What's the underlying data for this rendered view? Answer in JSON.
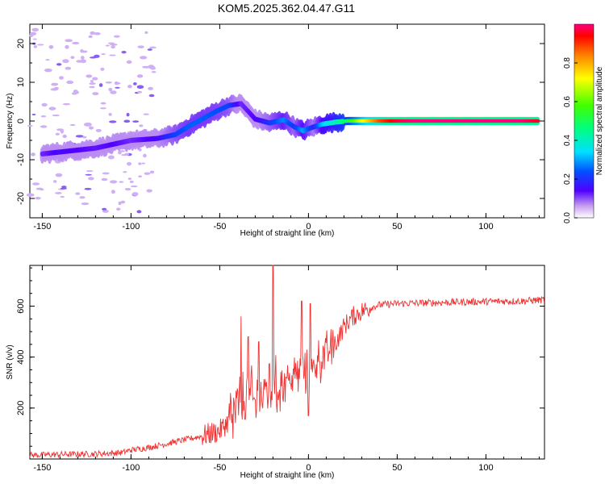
{
  "title": "KOM5.2025.362.04.47.G11",
  "colors": {
    "snr_line": "#f03232",
    "axis": "#000000"
  },
  "chart_data": [
    {
      "type": "heatmap",
      "xlabel": "Height of straight line (km)",
      "ylabel": "Frequency (Hz)",
      "xlim": [
        -157,
        133
      ],
      "ylim": [
        -25,
        25
      ],
      "xticks": [
        -150,
        -100,
        -50,
        0,
        50,
        100
      ],
      "xtick_labels": [
        "-150",
        "-100",
        "-50",
        "0",
        "50",
        "100"
      ],
      "yticks": [
        -20,
        -10,
        0,
        10,
        20
      ],
      "ytick_labels": [
        "-20",
        "-10",
        "0",
        "10",
        "20"
      ],
      "colorbar": {
        "label": "Normalized spectral amplitude",
        "range": [
          0,
          1
        ],
        "ticks": [
          0,
          0.2,
          0.4,
          0.6,
          0.8
        ],
        "tick_labels": [
          "0.0",
          "0.2",
          "0.4",
          "0.6",
          "0.8"
        ]
      },
      "ridge": [
        {
          "x": -150,
          "f": -8.5,
          "a": 0.12
        },
        {
          "x": -140,
          "f": -8.0,
          "a": 0.15
        },
        {
          "x": -130,
          "f": -7.5,
          "a": 0.14
        },
        {
          "x": -120,
          "f": -7.0,
          "a": 0.13
        },
        {
          "x": -110,
          "f": -6.0,
          "a": 0.14
        },
        {
          "x": -100,
          "f": -5.0,
          "a": 0.12
        },
        {
          "x": -85,
          "f": -4.5,
          "a": 0.15
        },
        {
          "x": -75,
          "f": -3.5,
          "a": 0.22
        },
        {
          "x": -68,
          "f": -1.5,
          "a": 0.25
        },
        {
          "x": -60,
          "f": 0.5,
          "a": 0.25
        },
        {
          "x": -52,
          "f": 2.5,
          "a": 0.24
        },
        {
          "x": -45,
          "f": 4.0,
          "a": 0.22
        },
        {
          "x": -38,
          "f": 4.5,
          "a": 0.12
        },
        {
          "x": -30,
          "f": 0.5,
          "a": 0.14
        },
        {
          "x": -22,
          "f": -0.5,
          "a": 0.2
        },
        {
          "x": -14,
          "f": 0.3,
          "a": 0.28
        },
        {
          "x": -8,
          "f": -1.5,
          "a": 0.2
        },
        {
          "x": -3,
          "f": -2.5,
          "a": 0.3
        },
        {
          "x": 3,
          "f": -1.5,
          "a": 0.18
        },
        {
          "x": 8,
          "f": -0.8,
          "a": 0.32
        },
        {
          "x": 15,
          "f": -0.3,
          "a": 0.4
        },
        {
          "x": 22,
          "f": 0.0,
          "a": 0.5
        },
        {
          "x": 30,
          "f": 0.0,
          "a": 0.7
        },
        {
          "x": 40,
          "f": 0.0,
          "a": 0.88
        },
        {
          "x": 50,
          "f": 0.0,
          "a": 0.97
        },
        {
          "x": 60,
          "f": 0.0,
          "a": 1.0
        },
        {
          "x": 70,
          "f": 0.0,
          "a": 1.0
        },
        {
          "x": 80,
          "f": 0.0,
          "a": 1.0
        },
        {
          "x": 90,
          "f": 0.0,
          "a": 1.0
        },
        {
          "x": 100,
          "f": 0.0,
          "a": 1.0
        },
        {
          "x": 110,
          "f": 0.0,
          "a": 1.0
        },
        {
          "x": 120,
          "f": 0.0,
          "a": 1.0
        },
        {
          "x": 130,
          "f": 0.0,
          "a": 0.95
        }
      ]
    },
    {
      "type": "line",
      "xlabel": "Height of straight line (km)",
      "ylabel": "SNR (v/v)",
      "xlim": [
        -157,
        133
      ],
      "ylim": [
        0,
        760
      ],
      "xticks": [
        -150,
        -100,
        -50,
        0,
        50,
        100
      ],
      "xtick_labels": [
        "-150",
        "-100",
        "-50",
        "0",
        "50",
        "100"
      ],
      "yticks": [
        200,
        400,
        600
      ],
      "ytick_labels": [
        "200",
        "400",
        "600"
      ],
      "series": [
        {
          "name": "SNR",
          "x": [
            -157,
            -140,
            -120,
            -105,
            -100,
            -90,
            -80,
            -70,
            -60,
            -50,
            -45,
            -40,
            -35,
            -30,
            -25,
            -22,
            -20,
            -15,
            -10,
            -5,
            0,
            5,
            10,
            15,
            20,
            25,
            30,
            35,
            40,
            50,
            60,
            80,
            100,
            120,
            133
          ],
          "y": [
            15,
            18,
            20,
            25,
            35,
            45,
            60,
            75,
            90,
            110,
            150,
            200,
            240,
            220,
            260,
            300,
            250,
            300,
            320,
            340,
            330,
            380,
            410,
            450,
            520,
            560,
            580,
            595,
            605,
            610,
            612,
            615,
            618,
            620,
            625
          ],
          "spikes": [
            {
              "x": -38,
              "y": 560
            },
            {
              "x": -34,
              "y": 480
            },
            {
              "x": -28,
              "y": 460
            },
            {
              "x": -20,
              "y": 760
            },
            {
              "x": -4,
              "y": 620
            },
            {
              "x": 0,
              "y": 170
            },
            {
              "x": 1,
              "y": 610
            }
          ]
        }
      ]
    }
  ]
}
